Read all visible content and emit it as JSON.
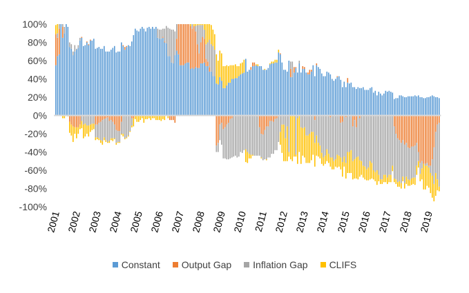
{
  "chart_data": {
    "type": "bar",
    "stacked": true,
    "period_start": "2001-01",
    "frequency": "monthly",
    "x_tick_labels": [
      "2001",
      "2002",
      "2003",
      "2004",
      "2005",
      "2006",
      "2007",
      "2008",
      "2009",
      "2010",
      "2011",
      "2012",
      "2013",
      "2014",
      "2015",
      "2016",
      "2017",
      "2018",
      "2019"
    ],
    "y_tick_labels": [
      "100%",
      "80%",
      "60%",
      "40%",
      "20%",
      "0%",
      "-20%",
      "-40%",
      "-60%",
      "-80%",
      "-100%"
    ],
    "ylim": [
      -100,
      100
    ],
    "y_unit": "%",
    "legend_position": "bottom",
    "grid": false,
    "series": [
      {
        "name": "Constant",
        "color": "#5B9BD5",
        "values": [
          55,
          65,
          67,
          100,
          85,
          90,
          100,
          97,
          75,
          73,
          66,
          70,
          72,
          74,
          82,
          85,
          76,
          77,
          80,
          77,
          82,
          82,
          84,
          73,
          74,
          75,
          73,
          73,
          76,
          70,
          70,
          70,
          72,
          74,
          76,
          69,
          70,
          70,
          80,
          76,
          72,
          75,
          77,
          76,
          81,
          88,
          95,
          93,
          92,
          95,
          97,
          95,
          92,
          96,
          97,
          95,
          97,
          95,
          97,
          85,
          84,
          84,
          85,
          80,
          79,
          65,
          65,
          58,
          57,
          66,
          71,
          67,
          55,
          55,
          55,
          57,
          58,
          58,
          51,
          52,
          51,
          53,
          52,
          52,
          57,
          57,
          58,
          54,
          54,
          48,
          48,
          43,
          43,
          35,
          34,
          42,
          38,
          30,
          30,
          33,
          36,
          36,
          40,
          40,
          41,
          41,
          43,
          45,
          46,
          47,
          62,
          48,
          50,
          50,
          54,
          54,
          55,
          54,
          54,
          54,
          50,
          50,
          50,
          52,
          56,
          57,
          57,
          58,
          58,
          69,
          67,
          58,
          50,
          50,
          48,
          60,
          42,
          42,
          47,
          52,
          47,
          57,
          47,
          51,
          51,
          47,
          45,
          45,
          48,
          55,
          43,
          55,
          53,
          51,
          46,
          43,
          43,
          48,
          47,
          45,
          40,
          38,
          40,
          42,
          43,
          39,
          31,
          37,
          31,
          36,
          35,
          36,
          31,
          31,
          29,
          31,
          30,
          30,
          31,
          28,
          28,
          28,
          30,
          31,
          25,
          27,
          22,
          26,
          24,
          22,
          24,
          27,
          26,
          27,
          26,
          25,
          18,
          19,
          19,
          22,
          22,
          21,
          20,
          20,
          21,
          21,
          21,
          21,
          22,
          21,
          22,
          20,
          20,
          19,
          19,
          20,
          20,
          21,
          22,
          21,
          20,
          20,
          19
        ]
      },
      {
        "name": "Output Gap",
        "color": "#ED7D31",
        "values": [
          34,
          20,
          28,
          0,
          12,
          0,
          0,
          0,
          -7,
          -10,
          -12,
          -13,
          -13,
          -13,
          -10,
          1,
          -1,
          0,
          1,
          1,
          1,
          0,
          0,
          -10,
          -10,
          -8,
          -7,
          -5,
          -4,
          -3,
          -2,
          -6,
          -5,
          -7,
          -10,
          -16,
          -17,
          -17,
          -7,
          1,
          3,
          1,
          0,
          0,
          -3,
          -3,
          0,
          0,
          0,
          0,
          0,
          0,
          0,
          0,
          0,
          0,
          0,
          0,
          0,
          0,
          0,
          0,
          1,
          1,
          0,
          0,
          -5,
          -5,
          -5,
          -8,
          13,
          33,
          45,
          45,
          45,
          43,
          42,
          42,
          47,
          43,
          47,
          39,
          26,
          16,
          23,
          29,
          26,
          8,
          5,
          5,
          0,
          0,
          0,
          -33,
          -30,
          -10,
          -8,
          -15,
          -13,
          -10,
          -8,
          -4,
          -3,
          0,
          0,
          0,
          0,
          0,
          0,
          0,
          0,
          0,
          0,
          3,
          4,
          4,
          0,
          -1,
          -13,
          -20,
          -21,
          -16,
          -12,
          -12,
          -6,
          -6,
          -7,
          -4,
          -3,
          -1,
          1,
          0,
          0,
          0,
          0,
          0,
          9,
          0,
          6,
          1,
          0,
          0,
          0,
          3,
          2,
          0,
          2,
          5,
          2,
          0,
          -5,
          2,
          0,
          0,
          0,
          0,
          0,
          0,
          0,
          -2,
          0,
          0,
          0,
          1,
          0,
          -8,
          -7,
          0,
          -2,
          5,
          0,
          0,
          -12,
          -5,
          -13,
          0,
          -3,
          0,
          0,
          0,
          0,
          0,
          0,
          0,
          0,
          0,
          0,
          0,
          0,
          0,
          0,
          0,
          0,
          0,
          0,
          0,
          -12,
          -20,
          -25,
          -27,
          -30,
          -27,
          -32,
          -30,
          -35,
          -36,
          -34,
          -34,
          -33,
          -30,
          -40,
          -52,
          -50,
          -53,
          -53,
          -52,
          -55,
          -55,
          -48,
          -35,
          -18,
          -10,
          -8,
          -5
        ]
      },
      {
        "name": "Inflation Gap",
        "color": "#A5A5A5",
        "values": [
          0,
          5,
          5,
          0,
          3,
          7,
          0,
          0,
          5,
          5,
          4,
          7,
          1,
          3,
          3,
          -6,
          -9,
          -9,
          -11,
          -11,
          -10,
          -9,
          -9,
          -14,
          -14,
          -17,
          -20,
          -23,
          -20,
          -24,
          -27,
          -22,
          -20,
          -18,
          -15,
          -14,
          -12,
          -12,
          -13,
          -20,
          -25,
          -24,
          -22,
          -17,
          -8,
          0,
          0,
          0,
          0,
          0,
          0,
          0,
          0,
          0,
          0,
          0,
          0,
          0,
          0,
          10,
          10,
          10,
          9,
          14,
          19,
          31,
          30,
          36,
          37,
          26,
          16,
          0,
          0,
          0,
          0,
          0,
          0,
          0,
          0,
          5,
          0,
          6,
          21,
          31,
          19,
          13,
          10,
          16,
          21,
          30,
          30,
          33,
          29,
          -7,
          -10,
          -17,
          -24,
          -32,
          -34,
          -38,
          -40,
          -43,
          -43,
          -45,
          -44,
          -46,
          -45,
          -40,
          -41,
          -38,
          -37,
          -40,
          -42,
          -43,
          -43,
          -44,
          -44,
          -43,
          -31,
          -26,
          -28,
          -32,
          -36,
          -34,
          -40,
          -36,
          -35,
          -34,
          -35,
          -28,
          -18,
          -10,
          -10,
          -25,
          -12,
          -40,
          8,
          17,
          0,
          -43,
          -3,
          3,
          -13,
          -14,
          -13,
          -22,
          -22,
          -20,
          -18,
          -18,
          -25,
          -22,
          -30,
          -33,
          -41,
          -46,
          -44,
          -37,
          -42,
          -44,
          -46,
          -50,
          -48,
          -43,
          -44,
          -38,
          -44,
          -45,
          -50,
          -40,
          -40,
          -38,
          -38,
          -43,
          -33,
          -45,
          -46,
          -50,
          -55,
          -56,
          -59,
          -57,
          -50,
          -52,
          -60,
          -62,
          -60,
          -65,
          -70,
          -70,
          -65,
          -65,
          -68,
          -65,
          -65,
          -55,
          -57,
          -50,
          -48,
          -45,
          -44,
          -40,
          -42,
          -37,
          -35,
          -35,
          -35,
          -34,
          -35,
          -25,
          -10,
          -12,
          -8,
          0,
          -2,
          -3,
          -2,
          -8,
          -18,
          -40,
          -45,
          -60,
          -70
        ]
      },
      {
        "name": "CLIFS",
        "color": "#FFC000",
        "values": [
          10,
          10,
          0,
          0,
          -3,
          -3,
          0,
          -1,
          -12,
          -12,
          -17,
          -7,
          -12,
          -7,
          -5,
          -8,
          -15,
          -14,
          -9,
          -12,
          -8,
          -7,
          -6,
          -3,
          -2,
          -2,
          -3,
          -4,
          -3,
          -2,
          -1,
          -2,
          -2,
          -3,
          -1,
          -2,
          -1,
          -1,
          -1,
          -3,
          -1,
          -1,
          -1,
          -1,
          -2,
          -9,
          -4,
          -7,
          -7,
          -5,
          -3,
          -8,
          -4,
          -4,
          -3,
          -5,
          -3,
          -3,
          -5,
          -5,
          -5,
          -6,
          -4,
          -5,
          0,
          -3,
          0,
          0,
          0,
          0,
          0,
          0,
          0,
          0,
          0,
          0,
          0,
          0,
          2,
          0,
          2,
          2,
          1,
          1,
          1,
          1,
          6,
          22,
          20,
          17,
          21,
          18,
          17,
          32,
          26,
          29,
          30,
          24,
          24,
          22,
          18,
          19,
          15,
          15,
          15,
          13,
          11,
          12,
          12,
          14,
          -14,
          -12,
          -5,
          -4,
          -1,
          0,
          1,
          2,
          0,
          -1,
          0,
          1,
          -1,
          0,
          1,
          2,
          2,
          3,
          3,
          3,
          -14,
          -31,
          -40,
          -25,
          -38,
          -5,
          -48,
          -50,
          -45,
          -2,
          -50,
          -40,
          -40,
          -30,
          -33,
          -30,
          -30,
          -32,
          -31,
          -25,
          -26,
          -22,
          -15,
          -14,
          -12,
          -9,
          -9,
          -13,
          -10,
          -10,
          -13,
          -9,
          -8,
          -14,
          -12,
          -13,
          -16,
          -11,
          -17,
          -23,
          -23,
          -25,
          -20,
          -21,
          -23,
          -25,
          -18,
          -15,
          -13,
          -14,
          -12,
          -14,
          -20,
          -17,
          -10,
          -10,
          -16,
          -7,
          -5,
          -5,
          -8,
          -8,
          -7,
          -8,
          -8,
          -6,
          -4,
          -5,
          -5,
          -6,
          -6,
          -5,
          -6,
          -8,
          -7,
          -6,
          -7,
          -7,
          -8,
          -10,
          -7,
          -8,
          -12,
          -28,
          -26,
          -22,
          -22,
          -22,
          -24,
          -19,
          -25,
          -12,
          -5
        ]
      }
    ]
  }
}
